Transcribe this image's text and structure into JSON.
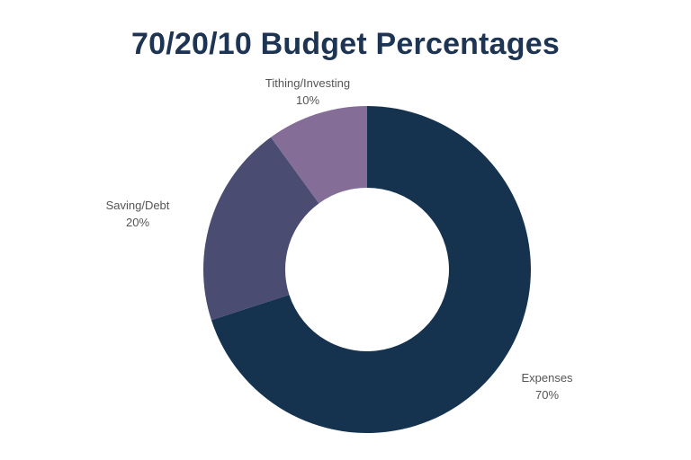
{
  "chart_data": {
    "type": "pie",
    "variant": "donut",
    "title": "70/20/10 Budget Percentages",
    "categories": [
      "Expenses",
      "Saving/Debt",
      "Tithing/Investing"
    ],
    "values": [
      70,
      20,
      10
    ],
    "value_labels": [
      "70%",
      "20%",
      "10%"
    ],
    "colors": [
      "#15324f",
      "#4a4c72",
      "#846e98"
    ],
    "start": "top",
    "direction": "clockwise",
    "legend": "none"
  },
  "colors": {
    "title": "#1d3553",
    "label_text": "#555555",
    "background": "#ffffff"
  }
}
